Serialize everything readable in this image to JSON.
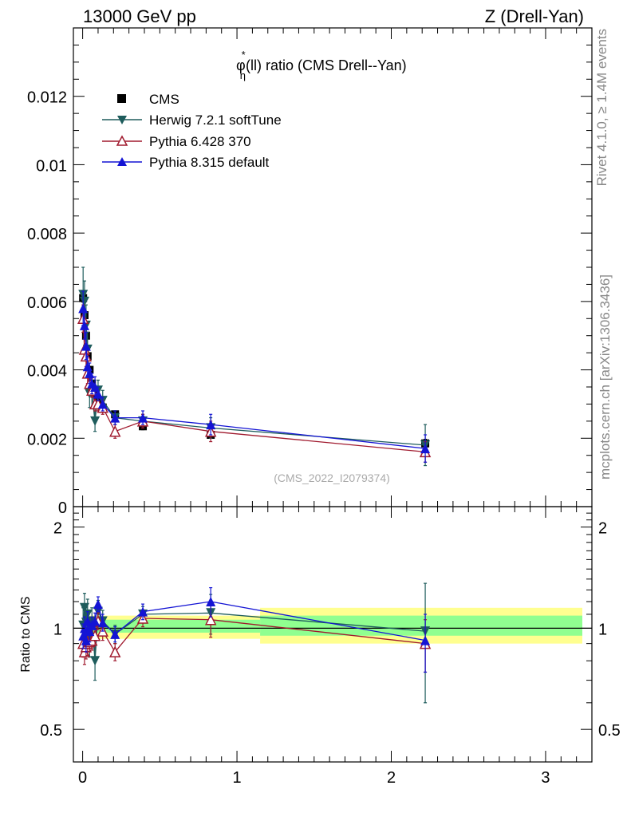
{
  "header": {
    "left": "13000 GeV pp",
    "right": "Z (Drell-Yan)",
    "side_top": "Rivet 4.1.0, ≥ 1.4M events",
    "side_bottom": "mcplots.cern.ch [arXiv:1306.3436]"
  },
  "chart_data": [
    {
      "type": "line",
      "title_main": "φ",
      "title_sup": "*",
      "title_sub": "η",
      "title_rest": "(ll) ratio (CMS Drell--Yan)",
      "watermark": "(CMS_2022_I2079374)",
      "xlim": [
        -0.06,
        3.3
      ],
      "ylim": [
        0,
        0.014
      ],
      "yticks": [
        0,
        0.002,
        0.004,
        0.006,
        0.008,
        0.01,
        0.012
      ],
      "ytick_labels": [
        "0",
        "0.002",
        "0.004",
        "0.006",
        "0.008",
        "0.01",
        "0.012"
      ],
      "legend": [
        "CMS",
        "Herwig 7.2.1 softTune",
        "Pythia 6.428 370",
        "Pythia 8.315 default"
      ],
      "series": [
        {
          "name": "CMS",
          "color": "#000000",
          "marker": "square",
          "x": [
            0.003,
            0.012,
            0.022,
            0.032,
            0.045,
            0.06,
            0.08,
            0.1,
            0.13,
            0.21,
            0.39,
            0.83,
            2.22
          ],
          "y": [
            0.0061,
            0.0056,
            0.005,
            0.0044,
            0.004,
            0.0036,
            0.0033,
            0.0031,
            0.0029,
            0.0027,
            0.00235,
            0.0021,
            0.00185
          ],
          "err": [
            0.00012,
            0.0001,
            0.0001,
            0.0001,
            0.0001,
            0.0001,
            0.0001,
            0.0001,
            0.0001,
            0.0001,
            0.0001,
            0.0001,
            0.00012
          ]
        },
        {
          "name": "Herwig 7.2.1 softTune",
          "color": "#1e5c5c",
          "marker": "triangle-down",
          "x": [
            0.003,
            0.012,
            0.022,
            0.032,
            0.045,
            0.06,
            0.08,
            0.1,
            0.13,
            0.21,
            0.39,
            0.83,
            2.22
          ],
          "y": [
            0.0062,
            0.006,
            0.0053,
            0.0046,
            0.0033,
            0.0033,
            0.0025,
            0.0034,
            0.0031,
            0.0026,
            0.0025,
            0.0023,
            0.0018
          ],
          "err": [
            0.0008,
            0.0006,
            0.0006,
            0.0005,
            0.0004,
            0.0004,
            0.0003,
            0.0003,
            0.0003,
            0.0002,
            0.0002,
            0.0003,
            0.0006
          ]
        },
        {
          "name": "Pythia 6.428 370",
          "color": "#a01a2e",
          "marker": "triangle-up-open",
          "x": [
            0.003,
            0.012,
            0.022,
            0.032,
            0.045,
            0.06,
            0.08,
            0.1,
            0.13,
            0.21,
            0.39,
            0.83,
            2.22
          ],
          "y": [
            0.0055,
            0.0046,
            0.0044,
            0.0039,
            0.0036,
            0.0034,
            0.003,
            0.003,
            0.0029,
            0.0022,
            0.0025,
            0.0022,
            0.0016
          ],
          "err": [
            0.0004,
            0.0003,
            0.0003,
            0.0003,
            0.0002,
            0.0002,
            0.0002,
            0.0002,
            0.0002,
            0.0002,
            0.0002,
            0.0003,
            0.0003
          ]
        },
        {
          "name": "Pythia 8.315 default",
          "color": "#1414d4",
          "marker": "triangle-up",
          "x": [
            0.003,
            0.012,
            0.022,
            0.032,
            0.045,
            0.06,
            0.08,
            0.1,
            0.13,
            0.21,
            0.39,
            0.83,
            2.22
          ],
          "y": [
            0.0058,
            0.0053,
            0.0047,
            0.0041,
            0.0039,
            0.0036,
            0.0035,
            0.0033,
            0.003,
            0.0026,
            0.0026,
            0.0024,
            0.0017
          ],
          "err": [
            0.0005,
            0.0004,
            0.0004,
            0.0003,
            0.0003,
            0.0003,
            0.0003,
            0.0002,
            0.0002,
            0.0002,
            0.0002,
            0.0003,
            0.0004
          ]
        }
      ]
    },
    {
      "type": "line",
      "ylabel": "Ratio to CMS",
      "xlim": [
        -0.06,
        3.3
      ],
      "ylim": [
        0.4,
        2.3
      ],
      "ylog": true,
      "yticks": [
        0.5,
        1,
        2
      ],
      "ytick_labels": [
        "0.5",
        "1",
        "2"
      ],
      "xticks": [
        0,
        1,
        2,
        3
      ],
      "xtick_labels": [
        "0",
        "1",
        "2",
        "3"
      ],
      "bands": [
        {
          "name": "stat",
          "color": "#90ff90",
          "x": [
            [
              0,
              1.15
            ],
            [
              1.15,
              3.3
            ]
          ],
          "lo": [
            0.97,
            0.95
          ],
          "hi": [
            1.06,
            1.09
          ]
        },
        {
          "name": "total",
          "color": "#ffff90",
          "x": [
            [
              0,
              1.15
            ],
            [
              1.15,
              3.3
            ]
          ],
          "lo": [
            0.93,
            0.9
          ],
          "hi": [
            1.09,
            1.15
          ]
        }
      ],
      "series": [
        {
          "name": "Herwig 7.2.1 softTune",
          "color": "#1e5c5c",
          "marker": "triangle-down",
          "x": [
            0.003,
            0.012,
            0.022,
            0.032,
            0.045,
            0.06,
            0.08,
            0.1,
            0.13,
            0.21,
            0.39,
            0.83,
            2.22
          ],
          "y": [
            1.02,
            1.15,
            1.04,
            1.1,
            0.92,
            1.05,
            0.8,
            1.12,
            1.05,
            0.96,
            1.1,
            1.11,
            0.98
          ],
          "err": [
            0.13,
            0.12,
            0.11,
            0.12,
            0.1,
            0.1,
            0.1,
            0.09,
            0.08,
            0.06,
            0.06,
            0.15,
            0.38
          ]
        },
        {
          "name": "Pythia 6.428 370",
          "color": "#a01a2e",
          "marker": "triangle-up-open",
          "x": [
            0.003,
            0.012,
            0.022,
            0.032,
            0.045,
            0.06,
            0.08,
            0.1,
            0.13,
            0.21,
            0.39,
            0.83,
            2.22
          ],
          "y": [
            0.9,
            0.85,
            0.88,
            0.9,
            0.91,
            0.92,
            0.95,
            1.05,
            0.98,
            0.85,
            1.07,
            1.06,
            0.9
          ],
          "err": [
            0.08,
            0.07,
            0.07,
            0.07,
            0.06,
            0.06,
            0.06,
            0.06,
            0.06,
            0.05,
            0.06,
            0.12,
            0.16
          ]
        },
        {
          "name": "Pythia 8.315 default",
          "color": "#1414d4",
          "marker": "triangle-up",
          "x": [
            0.003,
            0.012,
            0.022,
            0.032,
            0.045,
            0.06,
            0.08,
            0.1,
            0.13,
            0.21,
            0.39,
            0.83,
            2.22
          ],
          "y": [
            0.95,
            1.0,
            0.92,
            1.05,
            0.98,
            1.02,
            1.05,
            1.18,
            1.04,
            0.96,
            1.12,
            1.2,
            0.92
          ],
          "err": [
            0.08,
            0.08,
            0.07,
            0.07,
            0.07,
            0.06,
            0.06,
            0.06,
            0.06,
            0.05,
            0.06,
            0.12,
            0.18
          ]
        }
      ]
    }
  ]
}
